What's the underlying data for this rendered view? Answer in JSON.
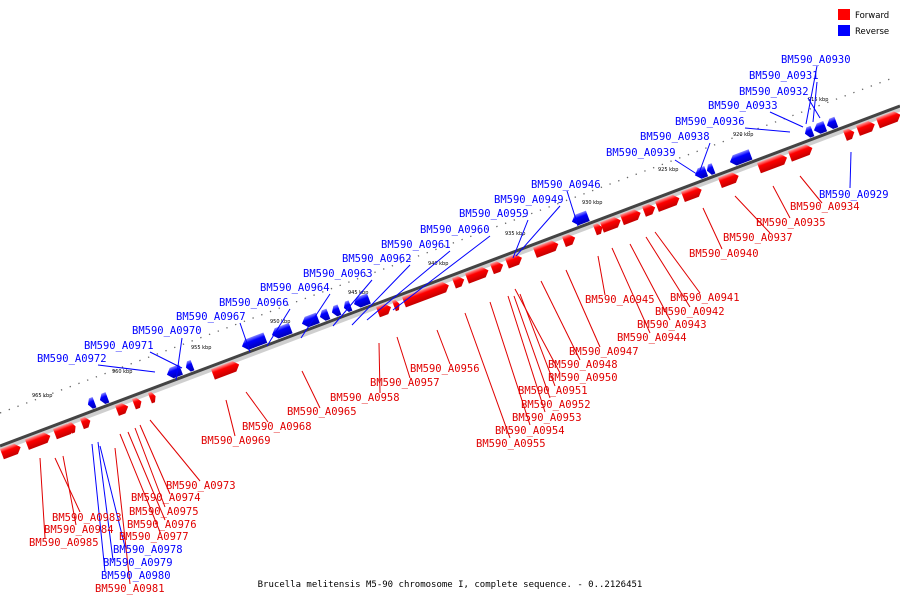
{
  "legend": {
    "forward": "Forward",
    "reverse": "Reverse",
    "forward_color": "#ff0000",
    "reverse_color": "#0000ff"
  },
  "caption": "Brucella melitensis M5-90 chromosome I, complete sequence. - 0..2126451",
  "ticks": [
    "915 kbp",
    "920 kbp",
    "925 kbp",
    "930 kbp",
    "935 kbp",
    "940 kbp",
    "945 kbp",
    "950 kbp",
    "955 kbp",
    "960 kbp",
    "965 kbp"
  ],
  "reverse_labels": [
    "BM590_A0930",
    "BM590_A0931",
    "BM590_A0932",
    "BM590_A0933",
    "BM590_A0936",
    "BM590_A0938",
    "BM590_A0939",
    "BM590_A0946",
    "BM590_A0949",
    "BM590_A0959",
    "BM590_A0960",
    "BM590_A0961",
    "BM590_A0962",
    "BM590_A0963",
    "BM590_A0964",
    "BM590_A0966",
    "BM590_A0967",
    "BM590_A0970",
    "BM590_A0971",
    "BM590_A0972",
    "BM590_A0929",
    "BM590_A0978",
    "BM590_A0979",
    "BM590_A0980"
  ],
  "forward_labels": [
    "BM590_A0934",
    "BM590_A0935",
    "BM590_A0937",
    "BM590_A0940",
    "BM590_A0941",
    "BM590_A0942",
    "BM590_A0943",
    "BM590_A0944",
    "BM590_A0945",
    "BM590_A0947",
    "BM590_A0948",
    "BM590_A0950",
    "BM590_A0951",
    "BM590_A0952",
    "BM590_A0953",
    "BM590_A0954",
    "BM590_A0955",
    "BM590_A0956",
    "BM590_A0957",
    "BM590_A0958",
    "BM590_A0965",
    "BM590_A0968",
    "BM590_A0969",
    "BM590_A0973",
    "BM590_A0974",
    "BM590_A0975",
    "BM590_A0976",
    "BM590_A0977",
    "BM590_A0983",
    "BM590_A0984",
    "BM590_A0985",
    "BM590_A0981"
  ]
}
